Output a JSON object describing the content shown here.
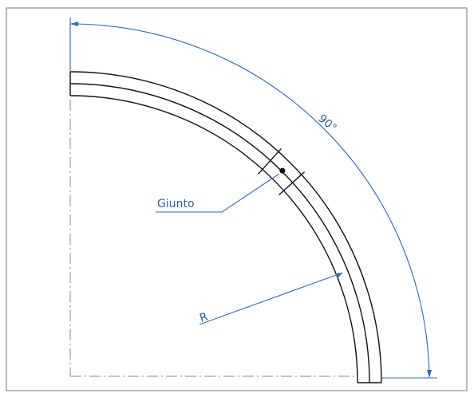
{
  "labels": {
    "angle": "90°",
    "joint": "Giunto",
    "radius": "R"
  }
}
